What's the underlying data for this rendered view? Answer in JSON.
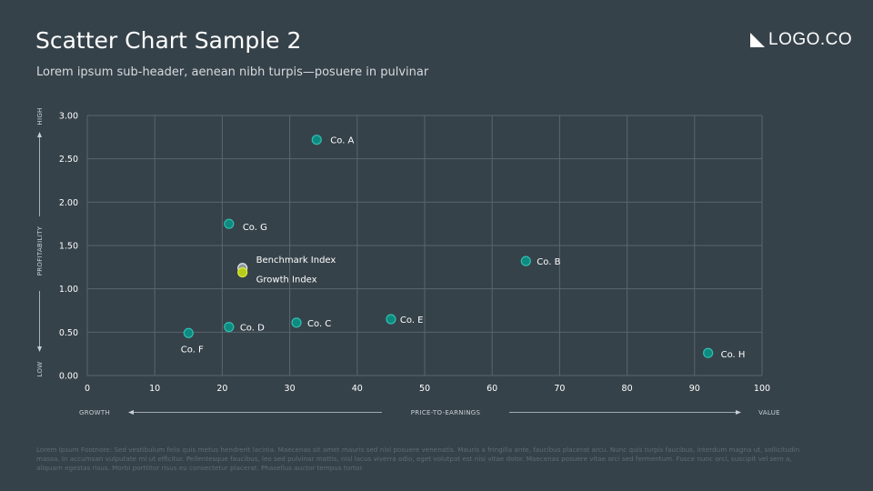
{
  "header": {
    "title": "Scatter Chart Sample 2",
    "subtitle": "Lorem ipsum sub-header, aenean nibh turpis—posuere in pulvinar",
    "logo_text": "LOGO.CO"
  },
  "footnote": "Lorem Ipsum Footnote: Sed vestibulum felis quis metus hendrerit lacinia. Maecenas sit amet mauris sed nisl posuere venenatis. Mauris a fringilla ante, faucibus placerat arcu. Nunc quis turpis faucibus, interdum magna ut, sollicitudin massa. In accumsan vulputate mi ut efficitur. Pellentesque faucibus, leo sed pulvinar mattis, nisl lacus viverra odio, eget volutpat est nisi vitae dolor. Maecenas posuere vitae orci sed fermentum. Fusce nunc orci, suscipit vel sem a, aliquam egestas risus. Morbi porttitor risus eu consectetur placerat. Phasellus auctor tempus tortor.",
  "colors": {
    "background": "#36424a",
    "grid": "#5a666e",
    "company_point": "#0e8a80",
    "company_stroke": "#2fc0b0",
    "benchmark_point": "#8e9a9f",
    "growth_point": "#b5cc18",
    "growth_text": "#c4e018"
  },
  "chart_data": {
    "type": "scatter",
    "xlim": [
      0,
      100
    ],
    "ylim": [
      0,
      3
    ],
    "x_ticks": [
      "0",
      "10",
      "20",
      "30",
      "40",
      "50",
      "60",
      "70",
      "80",
      "90",
      "100"
    ],
    "y_ticks": [
      "0.00",
      "0.50",
      "1.00",
      "1.50",
      "2.00",
      "2.50",
      "3.00"
    ],
    "grid": true,
    "xlabel": "PRICE-TO-EARNINGS",
    "x_low_label": "GROWTH",
    "x_high_label": "VALUE",
    "ylabel": "PROFITABILITY",
    "y_low_label": "LOW",
    "y_high_label": "HIGH",
    "points": [
      {
        "label": "Co. A",
        "x": 34,
        "y": 2.72,
        "kind": "company"
      },
      {
        "label": "Co. B",
        "x": 65,
        "y": 1.32,
        "kind": "company"
      },
      {
        "label": "Co. C",
        "x": 31,
        "y": 0.61,
        "kind": "company"
      },
      {
        "label": "Co. D",
        "x": 21,
        "y": 0.56,
        "kind": "company"
      },
      {
        "label": "Co. E",
        "x": 45,
        "y": 0.65,
        "kind": "company"
      },
      {
        "label": "Co. F",
        "x": 15,
        "y": 0.49,
        "kind": "company"
      },
      {
        "label": "Co. G",
        "x": 21,
        "y": 1.75,
        "kind": "company"
      },
      {
        "label": "Co. H",
        "x": 92,
        "y": 0.26,
        "kind": "company"
      },
      {
        "label": "Benchmark Index",
        "x": 23,
        "y": 1.24,
        "kind": "benchmark"
      },
      {
        "label": "Growth Index",
        "x": 23,
        "y": 1.19,
        "kind": "growth"
      }
    ]
  }
}
